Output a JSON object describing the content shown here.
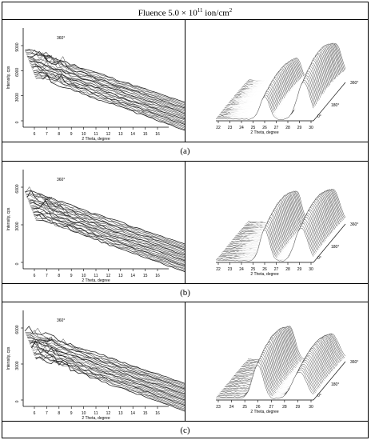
{
  "figure": {
    "title_main": "Fluence 5.0 × 10",
    "title_exp": "11",
    "title_unit": " ion/cm",
    "title_unit_exp": "2",
    "captions": [
      "(a)",
      "(b)",
      "(c)"
    ]
  },
  "chart_data": [
    {
      "panel": "a-left",
      "type": "line",
      "xlabel": "2 Theta, degree",
      "ylabel": "Intensity, cps",
      "x_ticks": [
        "6",
        "7",
        "8",
        "9",
        "10",
        "11",
        "12",
        "13",
        "14",
        "15",
        "16"
      ],
      "y_ticks": [
        "0",
        "3000",
        "6000",
        "9000"
      ],
      "depth_labels": [
        "180°",
        "360°"
      ]
    },
    {
      "panel": "a-right",
      "type": "line",
      "xlabel": "2 Theta, degree",
      "x_ticks": [
        "22",
        "23",
        "24",
        "25",
        "26",
        "27",
        "28",
        "29",
        "30"
      ],
      "depth_labels": [
        "0°",
        "180°",
        "360°"
      ],
      "peaks_2theta": [
        26.0,
        29.2
      ]
    },
    {
      "panel": "b-left",
      "type": "line",
      "xlabel": "2 Theta, degree",
      "ylabel": "Intensity, cps",
      "x_ticks": [
        "6",
        "7",
        "8",
        "9",
        "10",
        "11",
        "12",
        "13",
        "14",
        "15",
        "16"
      ],
      "y_ticks": [
        "0",
        "3000",
        "6000"
      ],
      "depth_labels": [
        "180°",
        "360°"
      ]
    },
    {
      "panel": "b-right",
      "type": "line",
      "xlabel": "2 Theta, degree",
      "x_ticks": [
        "22",
        "23",
        "24",
        "25",
        "26",
        "27",
        "28",
        "29",
        "30"
      ],
      "depth_labels": [
        "0°",
        "180°",
        "360°"
      ],
      "peaks_2theta": [
        26.0,
        29.0
      ]
    },
    {
      "panel": "c-left",
      "type": "line",
      "xlabel": "2 Theta, degree",
      "ylabel": "Intensity, cps",
      "x_ticks": [
        "6",
        "7",
        "8",
        "9",
        "10",
        "11",
        "12",
        "13",
        "14",
        "15",
        "16"
      ],
      "y_ticks": [
        "0",
        "3000",
        "6000"
      ],
      "depth_labels": [
        "180°",
        "360°"
      ]
    },
    {
      "panel": "c-right",
      "type": "line",
      "xlabel": "2 Theta, degree",
      "x_ticks": [
        "23",
        "24",
        "25",
        "26",
        "27",
        "28",
        "29",
        "30"
      ],
      "depth_labels": [
        "0°",
        "180°",
        "360°"
      ],
      "peaks_2theta": [
        26.0,
        29.0
      ]
    }
  ]
}
